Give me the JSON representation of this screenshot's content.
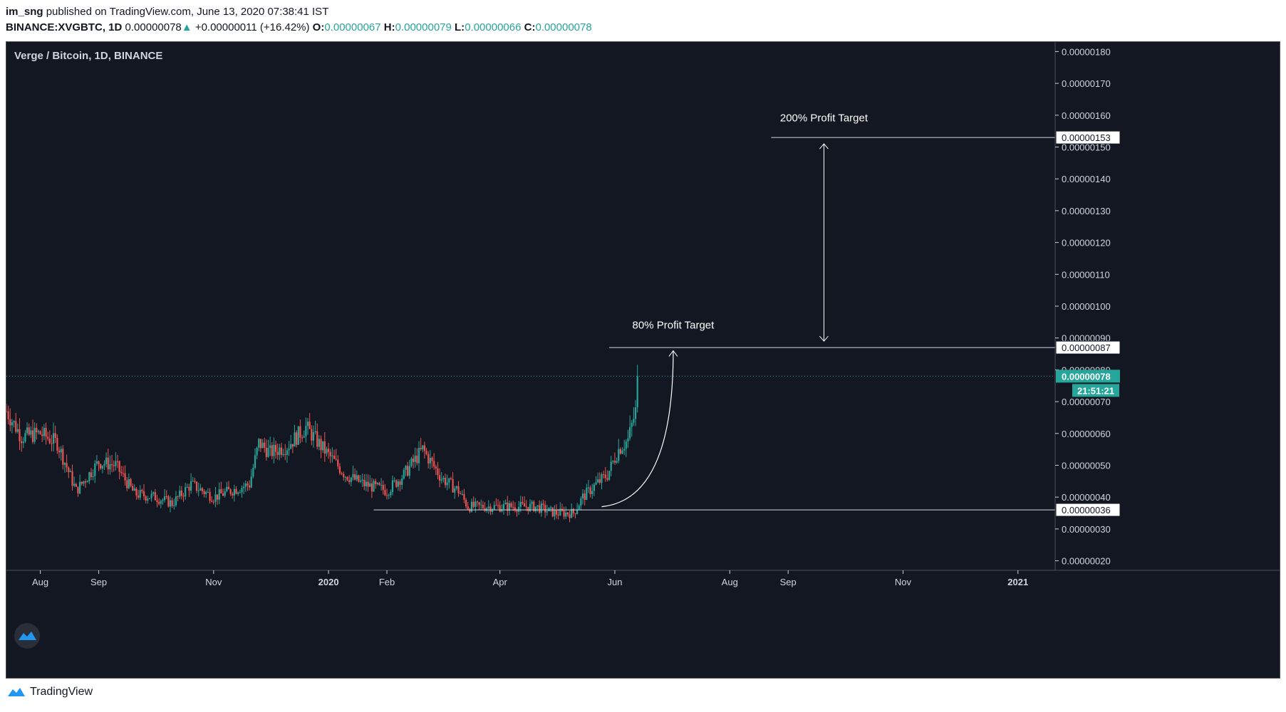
{
  "header": {
    "author": "im_sng",
    "published": "published on TradingView.com, June 13, 2020 07:38:41 IST",
    "symbol": "BINANCE:XVGBTC, 1D",
    "last": "0.00000078",
    "change_arrow": "▲",
    "change": "+0.00000011 (+16.42%)",
    "o_label": "O:",
    "o": "0.00000067",
    "h_label": "H:",
    "h": "0.00000079",
    "l_label": "L:",
    "l": "0.00000066",
    "c_label": "C:",
    "c": "0.00000078"
  },
  "footer": {
    "brand": "TradingView",
    "logo_icon": "tradingview-logo-icon"
  },
  "chart_data": {
    "type": "candlestick",
    "title": "Verge / Bitcoin, 1D, BINANCE",
    "ylim": [
      17,
      183
    ],
    "y_unit_note": "",
    "yticks": [
      {
        "v": 180,
        "label": "0.00000180"
      },
      {
        "v": 170,
        "label": "0.00000170"
      },
      {
        "v": 160,
        "label": "0.00000160"
      },
      {
        "v": 150,
        "label": "0.00000150"
      },
      {
        "v": 140,
        "label": "0.00000140"
      },
      {
        "v": 130,
        "label": "0.00000130"
      },
      {
        "v": 120,
        "label": "0.00000120"
      },
      {
        "v": 110,
        "label": "0.00000110"
      },
      {
        "v": 100,
        "label": "0.00000100"
      },
      {
        "v": 90,
        "label": "0.00000090"
      },
      {
        "v": 80,
        "label": "0.00000080"
      },
      {
        "v": 70,
        "label": "0.00000070"
      },
      {
        "v": 60,
        "label": "0.00000060"
      },
      {
        "v": 50,
        "label": "0.00000050"
      },
      {
        "v": 40,
        "label": "0.00000040"
      },
      {
        "v": 30,
        "label": "0.00000030"
      },
      {
        "v": 20,
        "label": "0.00000020"
      }
    ],
    "xlim": [
      "2019-07-14",
      "2021-01-20"
    ],
    "xticks": [
      {
        "date": "2019-08-01",
        "label": "Aug",
        "bold": false
      },
      {
        "date": "2019-09-01",
        "label": "Sep",
        "bold": false
      },
      {
        "date": "2019-11-01",
        "label": "Nov",
        "bold": false
      },
      {
        "date": "2020-01-01",
        "label": "2020",
        "bold": true
      },
      {
        "date": "2020-02-01",
        "label": "Feb",
        "bold": false
      },
      {
        "date": "2020-04-01",
        "label": "Apr",
        "bold": false
      },
      {
        "date": "2020-06-01",
        "label": "Jun",
        "bold": false
      },
      {
        "date": "2020-08-01",
        "label": "Aug",
        "bold": false
      },
      {
        "date": "2020-09-01",
        "label": "Sep",
        "bold": false
      },
      {
        "date": "2020-11-01",
        "label": "Nov",
        "bold": false
      },
      {
        "date": "2021-01-01",
        "label": "2021",
        "bold": true
      }
    ],
    "anchor_closes": [
      [
        "2019-07-14",
        67
      ],
      [
        "2019-07-22",
        59
      ],
      [
        "2019-08-01",
        60
      ],
      [
        "2019-08-10",
        57
      ],
      [
        "2019-08-20",
        42
      ],
      [
        "2019-09-01",
        51
      ],
      [
        "2019-09-10",
        50
      ],
      [
        "2019-09-20",
        41
      ],
      [
        "2019-10-01",
        40
      ],
      [
        "2019-10-10",
        38
      ],
      [
        "2019-10-20",
        44
      ],
      [
        "2019-11-01",
        40
      ],
      [
        "2019-11-10",
        42
      ],
      [
        "2019-11-20",
        44
      ],
      [
        "2019-11-25",
        57
      ],
      [
        "2019-12-01",
        54
      ],
      [
        "2019-12-10",
        56
      ],
      [
        "2019-12-20",
        62
      ],
      [
        "2019-12-28",
        56
      ],
      [
        "2020-01-10",
        47
      ],
      [
        "2020-01-20",
        44
      ],
      [
        "2020-02-01",
        42
      ],
      [
        "2020-02-10",
        47
      ],
      [
        "2020-02-20",
        55
      ],
      [
        "2020-03-01",
        46
      ],
      [
        "2020-03-10",
        42
      ],
      [
        "2020-03-15",
        37
      ],
      [
        "2020-04-01",
        37
      ],
      [
        "2020-04-20",
        37
      ],
      [
        "2020-04-30",
        35
      ],
      [
        "2020-05-10",
        35
      ],
      [
        "2020-05-15",
        40
      ],
      [
        "2020-05-22",
        44
      ],
      [
        "2020-05-28",
        47
      ],
      [
        "2020-06-03",
        55
      ],
      [
        "2020-06-08",
        58
      ],
      [
        "2020-06-12",
        67
      ],
      [
        "2020-06-13",
        78
      ]
    ],
    "last_price_label": "0.00000078",
    "countdown_label": "21:51:21",
    "annotations": [
      {
        "type": "hline",
        "y": 153,
        "x_start": "2020-08-23",
        "label": "0.00000153"
      },
      {
        "type": "hline",
        "y": 87,
        "x_start": "2020-05-29",
        "label": "0.00000087"
      },
      {
        "type": "hline",
        "y": 36,
        "x_start": "2020-01-25",
        "label": "0.00000036"
      },
      {
        "type": "text",
        "text": "200% Profit Target",
        "date": "2020-09-20",
        "y": 158
      },
      {
        "type": "text",
        "text": "80% Profit Target",
        "date": "2020-07-02",
        "y": 93
      },
      {
        "type": "double-arrow",
        "date": "2020-09-20",
        "y_from": 151,
        "y_to": 89
      },
      {
        "type": "curve-arrow",
        "from_date": "2020-05-25",
        "from_y": 37,
        "to_date": "2020-07-02",
        "to_y": 86
      }
    ],
    "colors": {
      "background": "#131722",
      "up": "#26a69a",
      "down": "#ef5350",
      "axis_text": "#d1d4dc",
      "grid_line": "#d1d4dc",
      "last_price": "#26a69a"
    },
    "watermark_icon": "cloud-logo-icon"
  }
}
